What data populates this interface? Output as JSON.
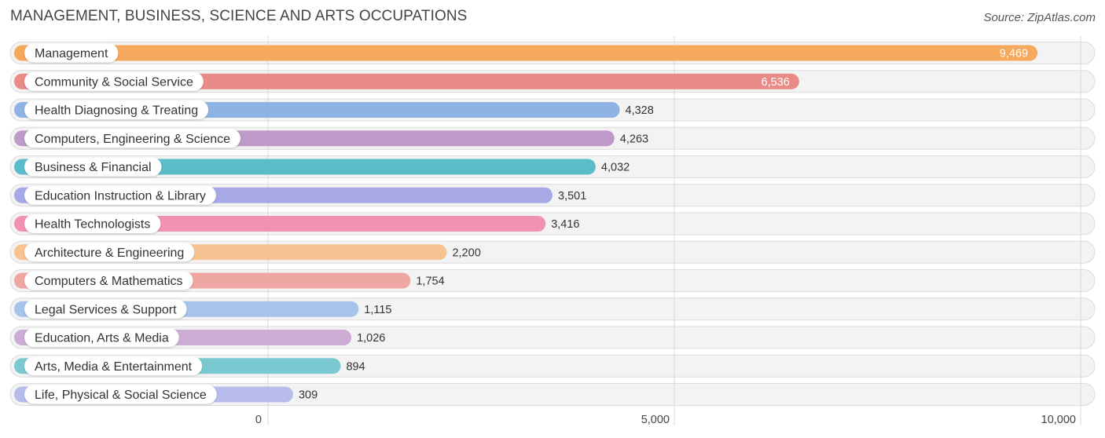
{
  "title": "MANAGEMENT, BUSINESS, SCIENCE AND ARTS OCCUPATIONS",
  "source": "Source: ZipAtlas.com",
  "chart_data": {
    "type": "bar",
    "orientation": "horizontal",
    "categories": [
      "Management",
      "Community & Social Service",
      "Health Diagnosing & Treating",
      "Computers, Engineering & Science",
      "Business & Financial",
      "Education Instruction & Library",
      "Health Technologists",
      "Architecture & Engineering",
      "Computers & Mathematics",
      "Legal Services & Support",
      "Education, Arts & Media",
      "Arts, Media & Entertainment",
      "Life, Physical & Social Science"
    ],
    "values": [
      9469,
      6536,
      4328,
      4263,
      4032,
      3501,
      3416,
      2200,
      1754,
      1115,
      1026,
      894,
      309
    ],
    "value_labels": [
      "9,469",
      "6,536",
      "4,328",
      "4,263",
      "4,032",
      "3,501",
      "3,416",
      "2,200",
      "1,754",
      "1,115",
      "1,026",
      "894",
      "309"
    ],
    "colors": [
      "#f6a85c",
      "#e98b87",
      "#8fb4e3",
      "#be9ac8",
      "#5bbcca",
      "#a6a9e6",
      "#f391b4",
      "#f8c393",
      "#efa7a4",
      "#a6c3ea",
      "#cdadd4",
      "#7ac9d1",
      "#b7bcec"
    ],
    "xlim": [
      0,
      10000
    ],
    "xticks": [
      0,
      5000,
      10000
    ],
    "xtick_labels": [
      "0",
      "5,000",
      "10,000"
    ],
    "grid": true
  }
}
